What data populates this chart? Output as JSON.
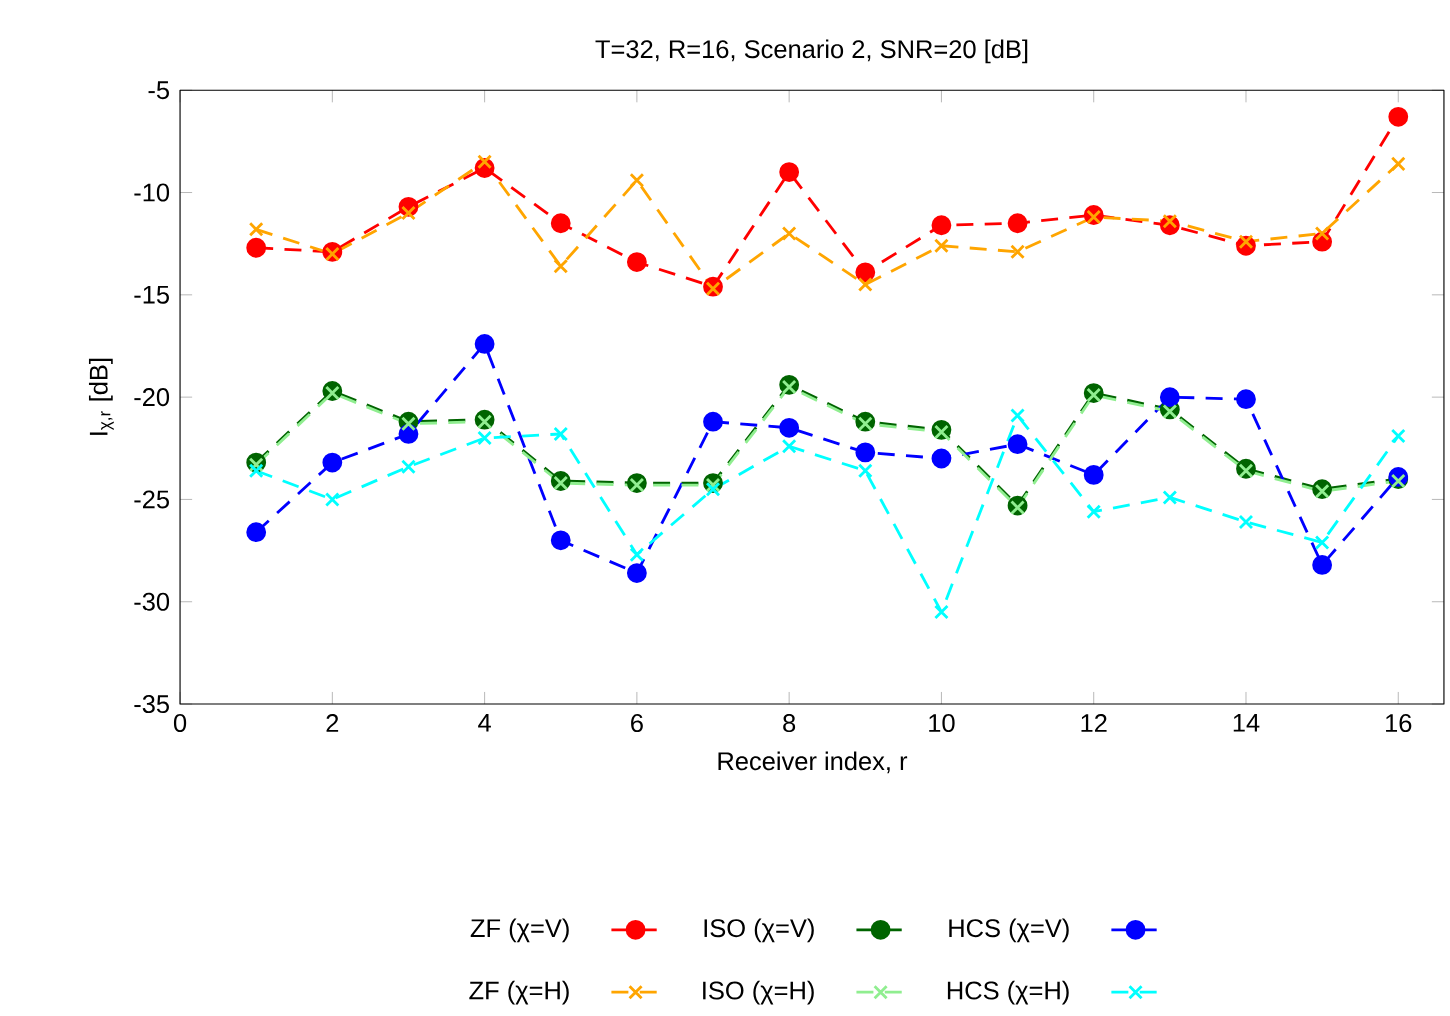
{
  "chart_data": {
    "type": "line",
    "title": "T=32, R=16, Scenario 2, SNR=20 [dB]",
    "xlabel": "Receiver index, r",
    "ylabel": "I$_{χ,r}$ [dB]",
    "x": [
      1,
      2,
      3,
      4,
      5,
      6,
      7,
      8,
      9,
      10,
      11,
      12,
      13,
      14,
      15,
      16
    ],
    "xlim": [
      0,
      16.6
    ],
    "xticks": [
      0,
      2,
      4,
      6,
      8,
      10,
      12,
      14,
      16
    ],
    "ylim": [
      -35,
      -5
    ],
    "yticks": [
      -35,
      -30,
      -25,
      -20,
      -15,
      -10,
      -5
    ],
    "grid": false,
    "legend": "bottom",
    "line_style": "dashed",
    "series": [
      {
        "name": "ZF (χ=V)",
        "color": "#ff0000",
        "marker": "circle",
        "values": [
          -12.7,
          -12.9,
          -10.7,
          -8.8,
          -11.5,
          -13.4,
          -14.6,
          -9.0,
          -13.9,
          -11.6,
          -11.5,
          -11.1,
          -11.6,
          -12.6,
          -12.4,
          -6.3
        ]
      },
      {
        "name": "ISO (χ=V)",
        "color": "#006400",
        "marker": "circle",
        "values": [
          -23.2,
          -19.7,
          -21.2,
          -21.1,
          -24.1,
          -24.2,
          -24.2,
          -19.4,
          -21.2,
          -21.6,
          -25.3,
          -19.8,
          -20.6,
          -23.5,
          -24.5,
          -24.0
        ]
      },
      {
        "name": "HCS (χ=V)",
        "color": "#0000ff",
        "marker": "circle",
        "values": [
          -26.6,
          -23.2,
          -21.8,
          -17.4,
          -27.0,
          -28.6,
          -21.2,
          -21.5,
          -22.7,
          -23.0,
          -22.3,
          -23.8,
          -20.0,
          -20.1,
          -28.2,
          -23.9
        ]
      },
      {
        "name": "ZF (χ=H)",
        "color": "#ffa500",
        "marker": "cross",
        "values": [
          -11.8,
          -13.0,
          -11.0,
          -8.5,
          -13.6,
          -9.4,
          -14.7,
          -12.0,
          -14.5,
          -12.6,
          -12.9,
          -11.2,
          -11.4,
          -12.4,
          -12.0,
          -8.6
        ]
      },
      {
        "name": "ISO (χ=H)",
        "color": "#90ee90",
        "marker": "cross",
        "values": [
          -23.3,
          -19.8,
          -21.3,
          -21.2,
          -24.2,
          -24.3,
          -24.3,
          -19.5,
          -21.3,
          -21.7,
          -25.4,
          -19.9,
          -20.7,
          -23.6,
          -24.6,
          -24.1
        ]
      },
      {
        "name": "HCS (χ=H)",
        "color": "#00ffff",
        "marker": "cross",
        "values": [
          -23.6,
          -25.0,
          -23.4,
          -22.0,
          -21.8,
          -27.7,
          -24.5,
          -22.4,
          -23.6,
          -30.5,
          -20.9,
          -25.6,
          -24.9,
          -26.1,
          -27.1,
          -21.9
        ]
      }
    ]
  }
}
